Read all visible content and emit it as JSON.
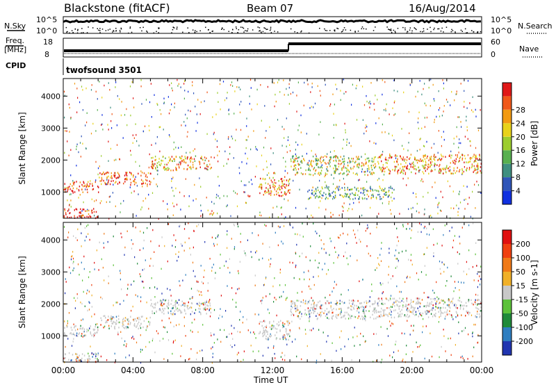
{
  "header": {
    "station_title": "Blackstone (fitACF)",
    "beam_label": "Beam 07",
    "date_label": "16/Aug/2014"
  },
  "summary": {
    "nsky_label": "N.Sky",
    "nsky_ticks": [
      "10^5",
      "10^0"
    ],
    "nsearch_label": "N.Search",
    "nsearch_ticks": [
      "10^5",
      "10^0"
    ],
    "freq_label_line1": "Freq.",
    "freq_label_line2": "[MHz]",
    "freq_ticks": [
      "18",
      "8"
    ],
    "nave_label": "Nave",
    "nave_ticks": [
      "60",
      "0"
    ],
    "cpid_label": "CPID",
    "cpid_value": "twofsound 3501"
  },
  "chart_data": [
    {
      "type": "heatmap",
      "name": "power",
      "ylabel": "Slant Range [km]",
      "yticks": [
        "1000",
        "2000",
        "3000",
        "4000"
      ],
      "ylim": [
        180,
        4550
      ],
      "xlim": [
        0,
        24
      ],
      "colorbar_label": "Power [dB]",
      "colorbar_ticks": [
        "4",
        "8",
        "12",
        "16",
        "20",
        "24",
        "28"
      ],
      "colorbar_colors": [
        "#1030e0",
        "#2f55b8",
        "#3f8f80",
        "#58b050",
        "#9ccd2e",
        "#e8d21a",
        "#f29a12",
        "#f0581a",
        "#e01818"
      ],
      "echo_bands": [
        {
          "t0": 0.0,
          "t1": 2.0,
          "r0": 1000,
          "r1": 1350,
          "level": 0.9
        },
        {
          "t0": 2.0,
          "t1": 5.0,
          "r0": 1250,
          "r1": 1650,
          "level": 0.85
        },
        {
          "t0": 5.0,
          "t1": 8.5,
          "r0": 1700,
          "r1": 2150,
          "level": 0.7
        },
        {
          "t0": 11.2,
          "t1": 13.0,
          "r0": 900,
          "r1": 1500,
          "level": 0.8
        },
        {
          "t0": 13.0,
          "t1": 18.0,
          "r0": 1550,
          "r1": 2150,
          "level": 0.55
        },
        {
          "t0": 18.0,
          "t1": 24.0,
          "r0": 1600,
          "r1": 2200,
          "level": 0.75
        },
        {
          "t0": 0.0,
          "t1": 2.0,
          "r0": 200,
          "r1": 500,
          "level": 0.95
        },
        {
          "t0": 14.0,
          "t1": 19.0,
          "r0": 800,
          "r1": 1200,
          "level": 0.4
        }
      ]
    },
    {
      "type": "heatmap",
      "name": "velocity",
      "ylabel": "Slant Range [km]",
      "yticks": [
        "1000",
        "2000",
        "3000",
        "4000"
      ],
      "ylim": [
        180,
        4550
      ],
      "xlim": [
        0,
        24
      ],
      "xlabel": "Time UT",
      "xticks": [
        "00:00",
        "04:00",
        "08:00",
        "12:00",
        "16:00",
        "20:00",
        "00:00"
      ],
      "colorbar_label": "Velocity [m s-1]",
      "colorbar_ticks": [
        "200",
        "100",
        "50",
        "15",
        "-15",
        "-50",
        "-100",
        "-200"
      ],
      "colorbar_colors": [
        "#2035b0",
        "#2e7ec0",
        "#1f8a3a",
        "#5cc23a",
        "#c8c8c8",
        "#f0b028",
        "#f07a18",
        "#f04010",
        "#e01010"
      ],
      "echo_bands": [
        {
          "t0": 0.0,
          "t1": 2.0,
          "r0": 1000,
          "r1": 1350,
          "level": 0.5
        },
        {
          "t0": 2.0,
          "t1": 5.0,
          "r0": 1250,
          "r1": 1650,
          "level": 0.6
        },
        {
          "t0": 5.0,
          "t1": 8.5,
          "r0": 1700,
          "r1": 2150,
          "level": 0.6
        },
        {
          "t0": 11.2,
          "t1": 13.0,
          "r0": 900,
          "r1": 1500,
          "level": 0.5
        },
        {
          "t0": 13.0,
          "t1": 18.0,
          "r0": 1550,
          "r1": 2150,
          "level": 0.5
        },
        {
          "t0": 18.0,
          "t1": 24.0,
          "r0": 1600,
          "r1": 2200,
          "level": 0.5
        },
        {
          "t0": 0.0,
          "t1": 2.0,
          "r0": 200,
          "r1": 500,
          "level": 0.9
        }
      ]
    }
  ],
  "xticks_hours": [
    0,
    4,
    8,
    12,
    16,
    20,
    24
  ]
}
